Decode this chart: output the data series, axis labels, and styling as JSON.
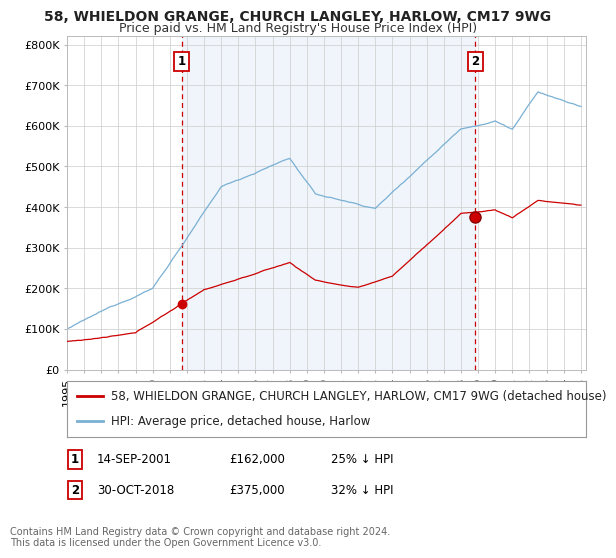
{
  "title": "58, WHIELDON GRANGE, CHURCH LANGLEY, HARLOW, CM17 9WG",
  "subtitle": "Price paid vs. HM Land Registry's House Price Index (HPI)",
  "ylim": [
    0,
    820000
  ],
  "yticks": [
    0,
    100000,
    200000,
    300000,
    400000,
    500000,
    600000,
    700000,
    800000
  ],
  "ytick_labels": [
    "£0",
    "£100K",
    "£200K",
    "£300K",
    "£400K",
    "£500K",
    "£600K",
    "£700K",
    "£800K"
  ],
  "transaction1_year": 2001.7,
  "transaction1_price": 162000,
  "transaction2_year": 2018.83,
  "transaction2_price": 375000,
  "line_color_property": "#cc0000",
  "line_color_hpi": "#7ab0d4",
  "shade_color": "#ddeeff",
  "vline_color": "#cc0000",
  "legend_label_property": "58, WHIELDON GRANGE, CHURCH LANGLEY, HARLOW, CM17 9WG (detached house)",
  "legend_label_hpi": "HPI: Average price, detached house, Harlow",
  "footnote": "Contains HM Land Registry data © Crown copyright and database right 2024.\nThis data is licensed under the Open Government Licence v3.0.",
  "background_color": "#ffffff",
  "grid_color": "#cccccc",
  "title_fontsize": 10,
  "subtitle_fontsize": 9,
  "tick_fontsize": 8,
  "legend_fontsize": 8.5
}
